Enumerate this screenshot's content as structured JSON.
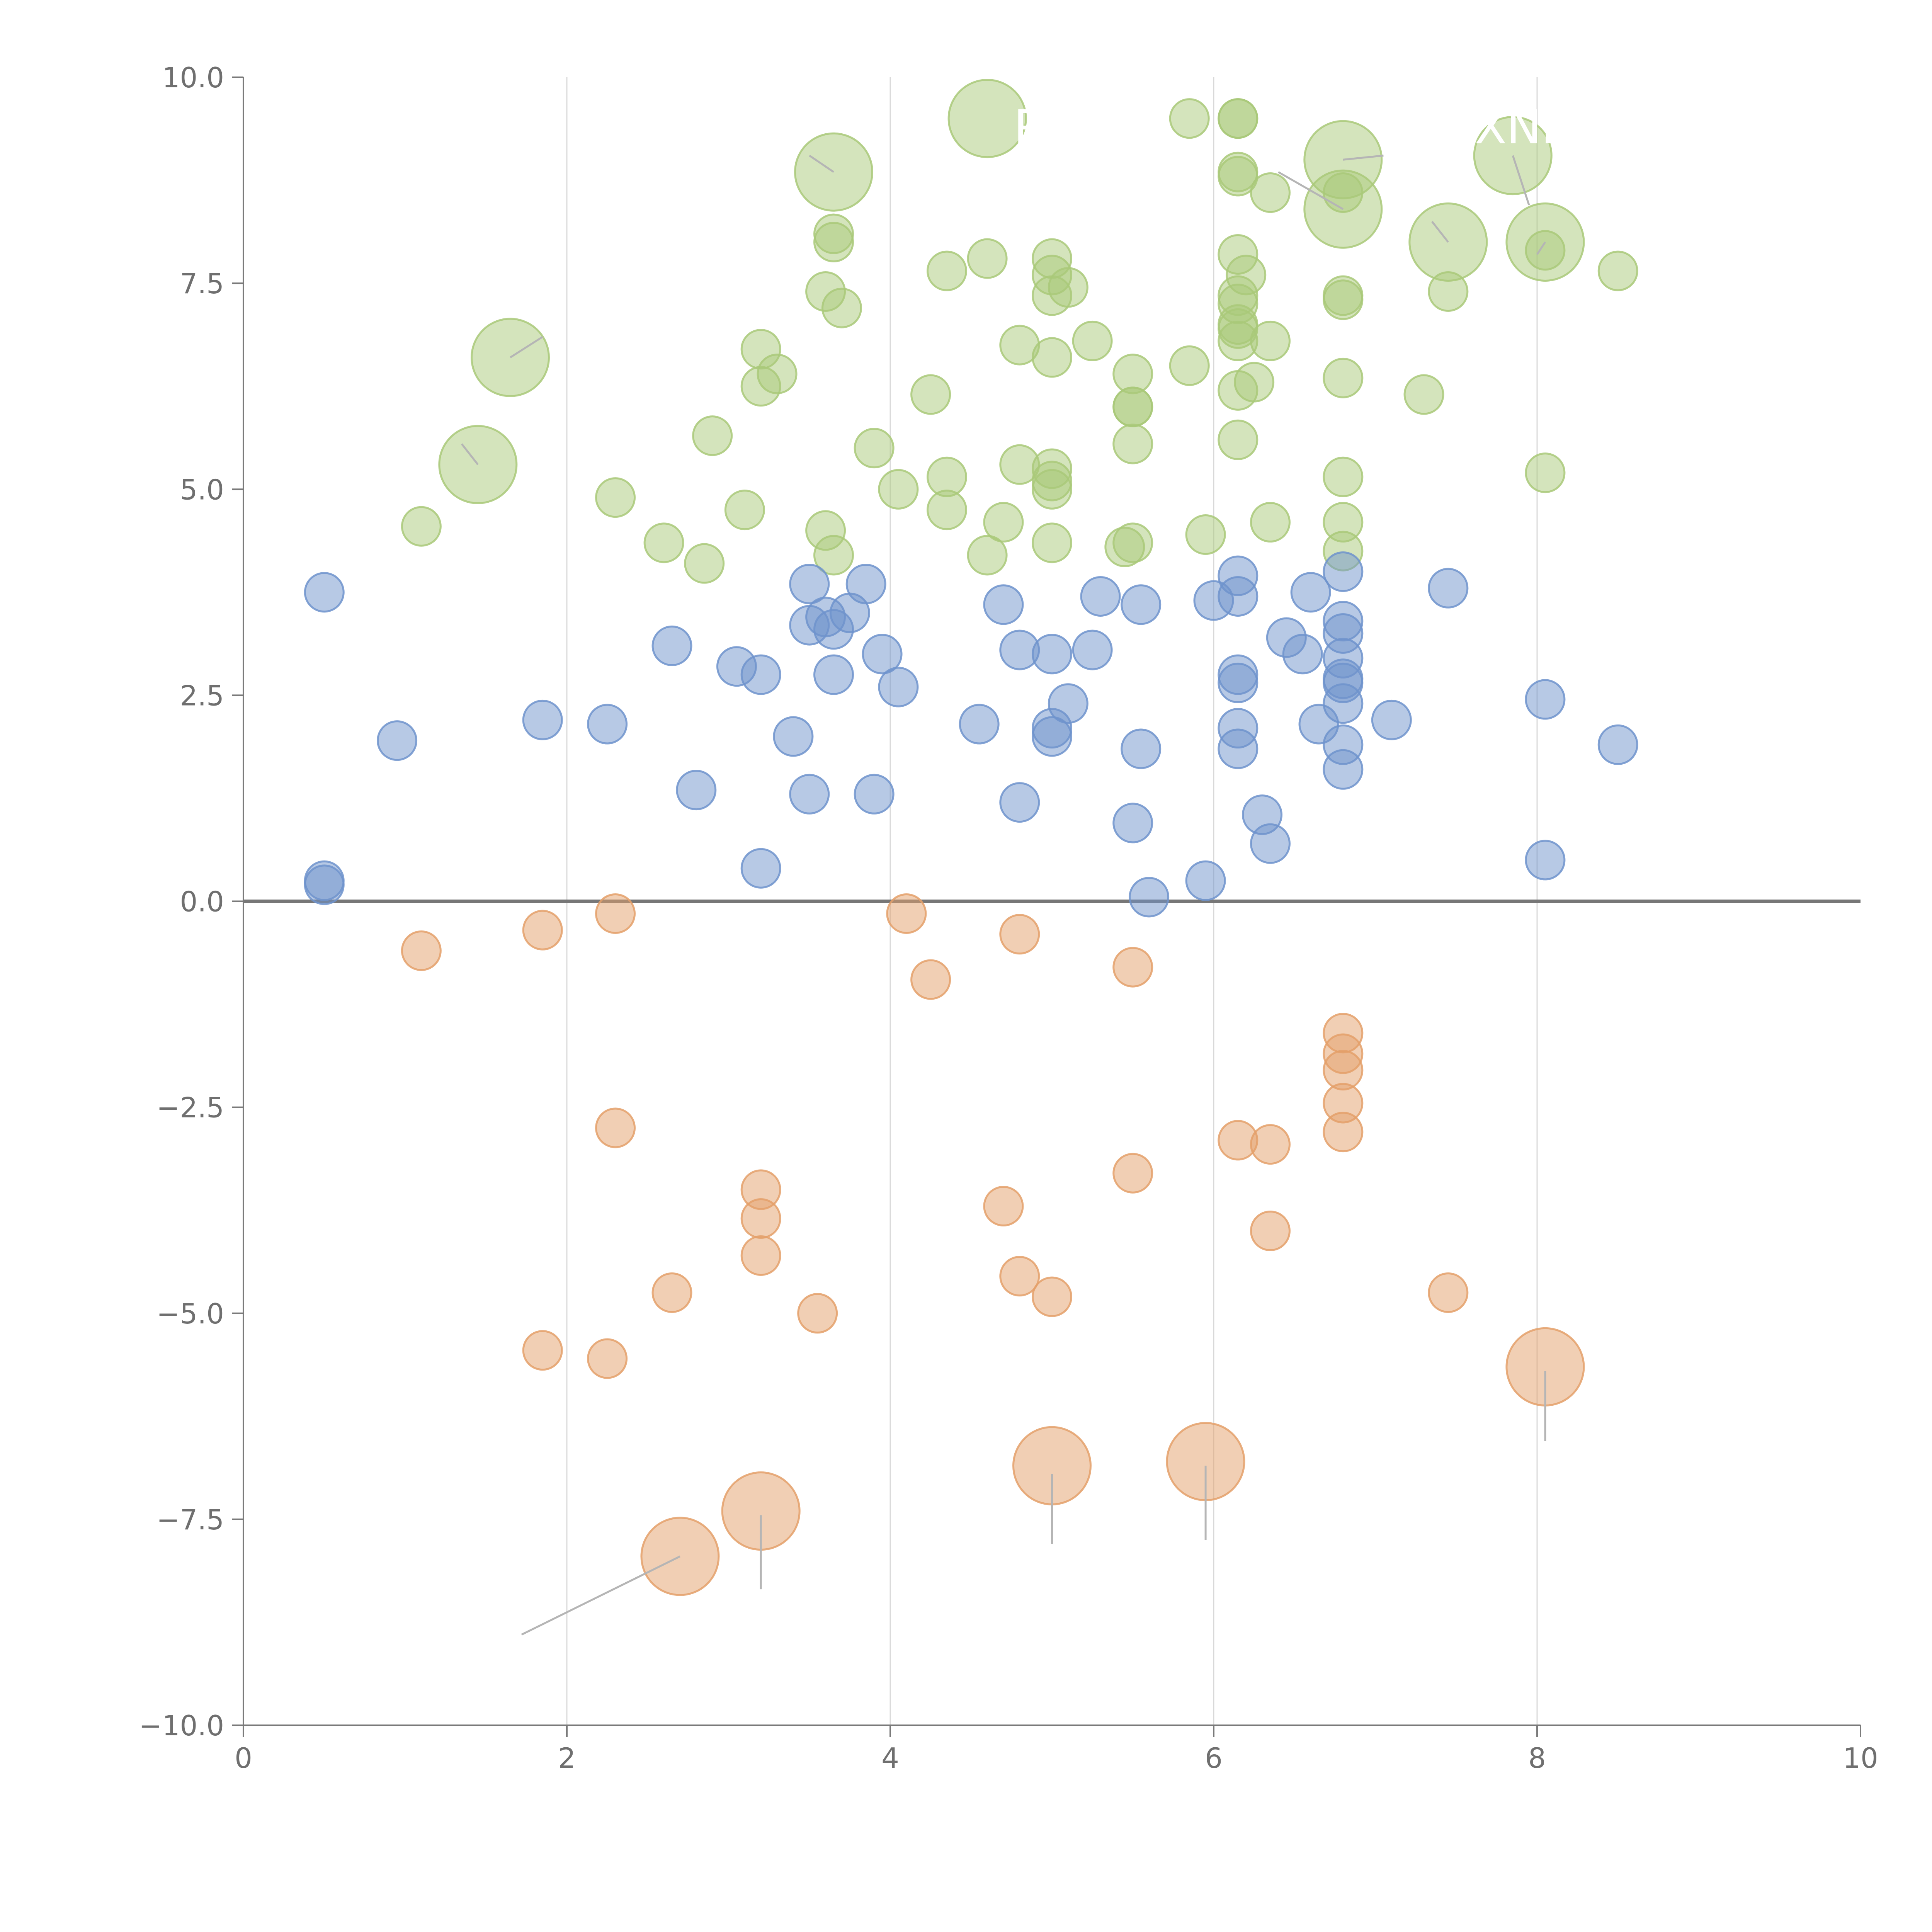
{
  "chart_data": {
    "type": "scatter",
    "title": "",
    "xlabel": "",
    "ylabel": "",
    "xlim": [
      0,
      10
    ],
    "ylim": [
      -10,
      10
    ],
    "x_ticks": [
      "0",
      "2",
      "4",
      "6",
      "8",
      "10"
    ],
    "y_ticks": [
      "10.0",
      "7.5",
      "5.0",
      "2.5",
      "0.0",
      "−2.5",
      "−5.0",
      "−7.5",
      "−10.0"
    ],
    "grid": "vertical lines at x ticks",
    "zero_line": true,
    "colors": {
      "green": "#a9c979",
      "blue": "#6f93cc",
      "orange": "#e4a06a",
      "axis": "#7a7a7a",
      "grid": "#d9d9d9",
      "zero_line": "#777777",
      "leader": "#b5b5b5",
      "label": "#ffffff"
    },
    "series": [
      {
        "color": "green",
        "points": [
          [
            1.1,
            4.55
          ],
          [
            2.3,
            4.9
          ],
          [
            2.6,
            4.35
          ],
          [
            2.85,
            4.1
          ],
          [
            2.9,
            5.65
          ],
          [
            3.1,
            4.75
          ],
          [
            3.2,
            6.7
          ],
          [
            3.2,
            6.25
          ],
          [
            3.3,
            6.4
          ],
          [
            3.6,
            7.4
          ],
          [
            3.6,
            4.5
          ],
          [
            3.65,
            4.2
          ],
          [
            3.65,
            8.1
          ],
          [
            3.65,
            8.0
          ],
          [
            3.7,
            7.2
          ],
          [
            3.9,
            5.5
          ],
          [
            4.05,
            5.0
          ],
          [
            4.25,
            6.15
          ],
          [
            4.35,
            7.65
          ],
          [
            4.35,
            5.15
          ],
          [
            4.35,
            4.75
          ],
          [
            4.6,
            7.8
          ],
          [
            4.6,
            4.2
          ],
          [
            4.7,
            4.6
          ],
          [
            4.8,
            6.75
          ],
          [
            4.8,
            5.3
          ],
          [
            5.0,
            7.8
          ],
          [
            5.0,
            7.6
          ],
          [
            5.0,
            7.35
          ],
          [
            5.0,
            6.6
          ],
          [
            5.0,
            5.25
          ],
          [
            5.0,
            5.0
          ],
          [
            5.0,
            5.1
          ],
          [
            5.0,
            4.35
          ],
          [
            5.1,
            7.45
          ],
          [
            5.25,
            6.8
          ],
          [
            5.45,
            4.3
          ],
          [
            5.5,
            4.35
          ],
          [
            5.5,
            6.4
          ],
          [
            5.5,
            6.0
          ],
          [
            5.5,
            6.0
          ],
          [
            5.5,
            5.55
          ],
          [
            5.85,
            9.5
          ],
          [
            5.85,
            6.5
          ],
          [
            5.95,
            4.45
          ],
          [
            6.15,
            9.5
          ],
          [
            6.15,
            9.5
          ],
          [
            6.15,
            8.85
          ],
          [
            6.15,
            8.8
          ],
          [
            6.15,
            7.85
          ],
          [
            6.15,
            7.35
          ],
          [
            6.15,
            7.25
          ],
          [
            6.15,
            7.0
          ],
          [
            6.15,
            6.95
          ],
          [
            6.15,
            6.8
          ],
          [
            6.15,
            6.2
          ],
          [
            6.15,
            5.6
          ],
          [
            6.2,
            7.6
          ],
          [
            6.25,
            6.3
          ],
          [
            6.35,
            8.6
          ],
          [
            6.35,
            6.8
          ],
          [
            6.35,
            4.6
          ],
          [
            6.8,
            8.6
          ],
          [
            6.8,
            7.35
          ],
          [
            6.8,
            7.3
          ],
          [
            6.8,
            6.35
          ],
          [
            6.8,
            5.15
          ],
          [
            6.8,
            4.6
          ],
          [
            6.8,
            4.25
          ],
          [
            7.3,
            6.15
          ],
          [
            7.45,
            7.4
          ],
          [
            8.05,
            7.9
          ],
          [
            8.05,
            5.2
          ],
          [
            8.5,
            7.65
          ]
        ]
      },
      {
        "color": "green",
        "large": true,
        "points": [
          [
            1.45,
            5.3
          ],
          [
            1.65,
            6.6
          ],
          [
            3.65,
            8.85
          ],
          [
            4.6,
            9.5
          ],
          [
            6.8,
            9.0
          ],
          [
            6.8,
            8.4
          ],
          [
            7.45,
            8.0
          ],
          [
            7.85,
            9.05
          ],
          [
            8.05,
            8.0
          ]
        ]
      },
      {
        "color": "blue",
        "points": [
          [
            0.5,
            3.75
          ],
          [
            0.5,
            0.25
          ],
          [
            0.5,
            0.2
          ],
          [
            0.95,
            1.95
          ],
          [
            1.85,
            2.2
          ],
          [
            2.25,
            2.15
          ],
          [
            2.65,
            3.1
          ],
          [
            2.8,
            1.35
          ],
          [
            3.05,
            2.85
          ],
          [
            3.2,
            2.75
          ],
          [
            3.2,
            0.4
          ],
          [
            3.4,
            2.0
          ],
          [
            3.5,
            3.85
          ],
          [
            3.5,
            3.35
          ],
          [
            3.5,
            1.3
          ],
          [
            3.6,
            3.45
          ],
          [
            3.65,
            3.3
          ],
          [
            3.65,
            2.75
          ],
          [
            3.75,
            3.5
          ],
          [
            3.85,
            3.85
          ],
          [
            3.9,
            1.3
          ],
          [
            3.95,
            3.0
          ],
          [
            4.05,
            2.6
          ],
          [
            4.55,
            2.15
          ],
          [
            4.7,
            3.6
          ],
          [
            4.8,
            3.05
          ],
          [
            4.8,
            1.2
          ],
          [
            5.0,
            3.0
          ],
          [
            5.0,
            2.1
          ],
          [
            5.0,
            2.0
          ],
          [
            5.1,
            2.4
          ],
          [
            5.25,
            3.05
          ],
          [
            5.3,
            3.7
          ],
          [
            5.5,
            0.95
          ],
          [
            5.55,
            3.6
          ],
          [
            5.55,
            1.85
          ],
          [
            5.6,
            0.05
          ],
          [
            5.95,
            0.25
          ],
          [
            6.0,
            3.65
          ],
          [
            6.15,
            3.95
          ],
          [
            6.15,
            3.7
          ],
          [
            6.15,
            2.75
          ],
          [
            6.15,
            2.65
          ],
          [
            6.15,
            2.1
          ],
          [
            6.15,
            1.85
          ],
          [
            6.3,
            1.05
          ],
          [
            6.35,
            0.7
          ],
          [
            6.45,
            3.2
          ],
          [
            6.55,
            3.0
          ],
          [
            6.6,
            3.75
          ],
          [
            6.65,
            2.15
          ],
          [
            6.8,
            4.0
          ],
          [
            6.8,
            3.4
          ],
          [
            6.8,
            3.25
          ],
          [
            6.8,
            2.95
          ],
          [
            6.8,
            2.7
          ],
          [
            6.8,
            2.65
          ],
          [
            6.8,
            2.4
          ],
          [
            6.8,
            1.9
          ],
          [
            6.8,
            1.6
          ],
          [
            7.1,
            2.2
          ],
          [
            7.45,
            3.8
          ],
          [
            8.05,
            2.45
          ],
          [
            8.05,
            0.5
          ],
          [
            8.5,
            1.9
          ]
        ]
      },
      {
        "color": "orange",
        "points": [
          [
            1.1,
            -0.6
          ],
          [
            1.85,
            -0.35
          ],
          [
            1.85,
            -5.45
          ],
          [
            2.25,
            -5.55
          ],
          [
            2.3,
            -0.15
          ],
          [
            2.3,
            -2.75
          ],
          [
            2.65,
            -4.75
          ],
          [
            3.2,
            -3.5
          ],
          [
            3.2,
            -3.85
          ],
          [
            3.2,
            -4.3
          ],
          [
            3.55,
            -5.0
          ],
          [
            4.1,
            -0.15
          ],
          [
            4.25,
            -0.95
          ],
          [
            4.7,
            -3.7
          ],
          [
            4.8,
            -0.4
          ],
          [
            4.8,
            -4.55
          ],
          [
            5.0,
            -4.8
          ],
          [
            5.5,
            -0.8
          ],
          [
            5.5,
            -3.3
          ],
          [
            6.15,
            -2.9
          ],
          [
            6.35,
            -2.95
          ],
          [
            6.35,
            -4.0
          ],
          [
            6.8,
            -1.6
          ],
          [
            6.8,
            -1.85
          ],
          [
            6.8,
            -2.05
          ],
          [
            6.8,
            -2.45
          ],
          [
            6.8,
            -2.8
          ],
          [
            7.45,
            -4.75
          ]
        ]
      },
      {
        "color": "orange",
        "large": true,
        "points": [
          [
            2.7,
            -7.95
          ],
          [
            3.2,
            -7.4
          ],
          [
            5.0,
            -6.85
          ],
          [
            5.95,
            -6.8
          ],
          [
            8.05,
            -5.65
          ]
        ]
      }
    ],
    "annotations": [
      {
        "text": "PC",
        "x": 4.95,
        "y": 9.2
      },
      {
        "text": "XNL",
        "x": 7.9,
        "y": 9.2
      }
    ]
  }
}
